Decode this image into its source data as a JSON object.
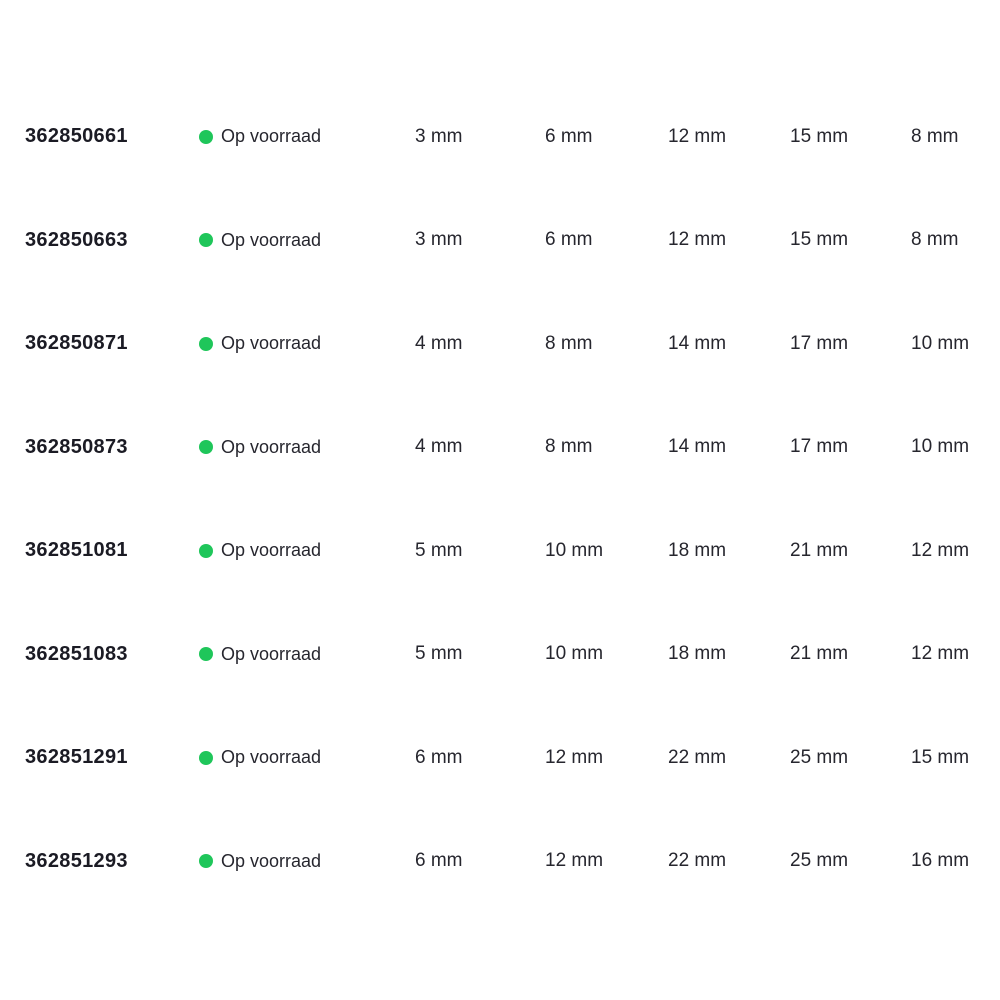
{
  "table": {
    "columns": [
      "product_number",
      "stock_status",
      "dim1",
      "dim2",
      "dim3",
      "dim4",
      "dim5"
    ],
    "rows": [
      {
        "id": "362850661",
        "status": "Op voorraad",
        "values": [
          "3 mm",
          "6 mm",
          "12 mm",
          "15 mm",
          "8 mm"
        ]
      },
      {
        "id": "362850663",
        "status": "Op voorraad",
        "values": [
          "3 mm",
          "6 mm",
          "12 mm",
          "15 mm",
          "8 mm"
        ]
      },
      {
        "id": "362850871",
        "status": "Op voorraad",
        "values": [
          "4 mm",
          "8 mm",
          "14 mm",
          "17 mm",
          "10 mm"
        ]
      },
      {
        "id": "362850873",
        "status": "Op voorraad",
        "values": [
          "4 mm",
          "8 mm",
          "14 mm",
          "17 mm",
          "10 mm"
        ]
      },
      {
        "id": "362851081",
        "status": "Op voorraad",
        "values": [
          "5 mm",
          "10 mm",
          "18 mm",
          "21 mm",
          "12 mm"
        ]
      },
      {
        "id": "362851083",
        "status": "Op voorraad",
        "values": [
          "5 mm",
          "10 mm",
          "18 mm",
          "21 mm",
          "12 mm"
        ]
      },
      {
        "id": "362851291",
        "status": "Op voorraad",
        "values": [
          "6 mm",
          "12 mm",
          "22 mm",
          "25 mm",
          "15 mm"
        ]
      },
      {
        "id": "362851293",
        "status": "Op voorraad",
        "values": [
          "6 mm",
          "12 mm",
          "22 mm",
          "25 mm",
          "16 mm"
        ]
      }
    ]
  },
  "icons": {
    "stock_dot": "in-stock-dot-icon"
  },
  "colors": {
    "background": "#ffffff",
    "in_stock_green": "#1fc65a",
    "product_number_text": "#1b1b24",
    "value_text": "#26262e"
  }
}
